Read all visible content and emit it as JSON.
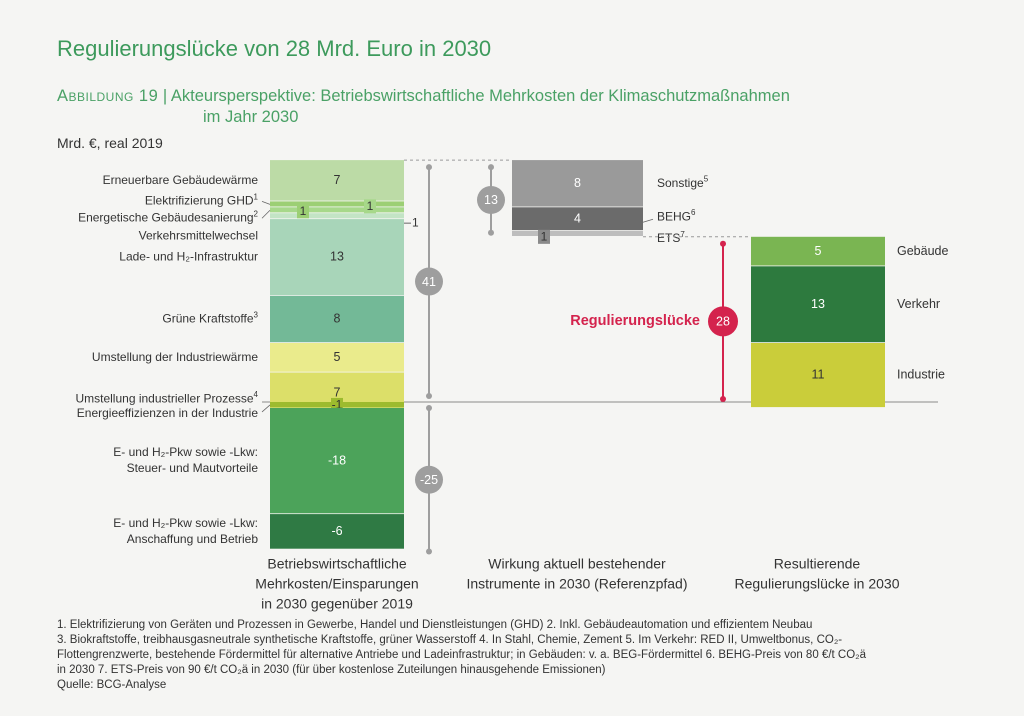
{
  "title": "Regulierungslücke von 28 Mrd. Euro in 2030",
  "subtitle": {
    "label": "Abbildung 19",
    "separator": "|",
    "line1": "Akteursperspektive: Betriebswirtschaftliche Mehrkosten der Klimaschutzmaßnahmen",
    "line2": "im Jahr 2030"
  },
  "unit": "Mrd. €, real 2019",
  "colors": {
    "ee_waerme": "#bcdba6",
    "elektrifizierung": "#9ccf74",
    "sanierung": "#a7d88a",
    "verkehrsmittel": "#c3e4c5",
    "ladeinfra": "#a8d5b9",
    "kraftstoffe": "#73b997",
    "industriewaerme": "#eaeb8c",
    "prozesse": "#dcdf69",
    "effizienz": "#9dbb2e",
    "pkw_steuer": "#4ca35a",
    "pkw_anschaffung": "#2f7a44",
    "sonstige": "#9a9a9a",
    "behg": "#6b6b6b",
    "ets": "#bdbdbd",
    "gebaeude": "#7ab552",
    "verkehr": "#2d7a3e",
    "industrie": "#cacd3a",
    "regulierung": "#d4234d",
    "bracket": "#9e9e9e"
  },
  "chart_data": {
    "type": "waterfall",
    "unit": "Mrd. €, real 2019",
    "columns": [
      {
        "name": "Betriebswirtschaftliche Mehrkosten/Einsparungen in 2030 gegenüber 2019",
        "label_lines": [
          "Betriebswirtschaftliche",
          "Mehrkosten/Einsparungen",
          "in 2030 gegenüber 2019"
        ],
        "segments": [
          {
            "label": "Erneuerbare Gebäudewärme",
            "value": 7
          },
          {
            "label": "Elektrifizierung GHD",
            "note": "1",
            "value": 1
          },
          {
            "label": "Energetische Gebäudesanierung",
            "note": "2",
            "value": 1
          },
          {
            "label": "Verkehrsmittelwechsel",
            "value": 1
          },
          {
            "label": "Lade- und H₂-Infrastruktur",
            "value": 13
          },
          {
            "label": "Grüne Kraftstoffe",
            "note": "3",
            "value": 8
          },
          {
            "label": "Umstellung der Industriewärme",
            "value": 5
          },
          {
            "label": "Umstellung industrieller Prozesse",
            "note": "4",
            "value": 7
          },
          {
            "label": "Energieeffizienzen in der Industrie",
            "value": -1
          },
          {
            "label_lines": [
              "E- und H₂-Pkw sowie -Lkw:",
              "Steuer- und Mautvorteile"
            ],
            "value": -18
          },
          {
            "label_lines": [
              "E- und H₂-Pkw sowie -Lkw:",
              "Anschaffung und Betrieb"
            ],
            "value": -6
          }
        ],
        "total_positive": 41,
        "total_negative": -25
      },
      {
        "name": "Wirkung aktuell bestehender Instrumente in 2030 (Referenzpfad)",
        "label_lines": [
          "Wirkung aktuell bestehender",
          "Instrumente in 2030 (Referenzpfad)"
        ],
        "segments": [
          {
            "label": "Sonstige",
            "note": "5",
            "value": 8
          },
          {
            "label": "BEHG",
            "note": "6",
            "value": 4
          },
          {
            "label": "ETS",
            "note": "7",
            "value": 1
          }
        ],
        "total": 13
      },
      {
        "name": "Resultierende Regulierungslücke in 2030",
        "label_lines": [
          "Resultierende",
          "Regulierungslücke in 2030"
        ],
        "segments": [
          {
            "label": "Gebäude",
            "value": 5
          },
          {
            "label": "Verkehr",
            "value": 13
          },
          {
            "label": "Industrie",
            "value": 11
          }
        ],
        "total": 28,
        "total_label": "Regulierungslücke"
      }
    ]
  },
  "footnotes": [
    "1. Elektrifizierung von Geräten und Prozessen in Gewerbe, Handel und Dienstleistungen (GHD)   2. Inkl. Gebäudeautomation und effizientem Neubau",
    "3. Biokraftstoffe, treibhausgasneutrale synthetische Kraftstoffe, grüner Wasserstoff   4. In Stahl, Chemie, Zement   5. Im Verkehr: RED II, Umweltbonus, CO₂-",
    "Flottengrenzwerte, bestehende Fördermittel für alternative Antriebe und Ladeinfrastruktur; in Gebäuden: v. a. BEG-Fördermittel   6. BEHG-Preis von 80 €/t CO₂ä",
    "in 2030   7. ETS-Preis von 90 €/t CO₂ä in 2030 (für über kostenlose Zuteilungen hinausgehende Emissionen)",
    "Quelle: BCG-Analyse"
  ]
}
